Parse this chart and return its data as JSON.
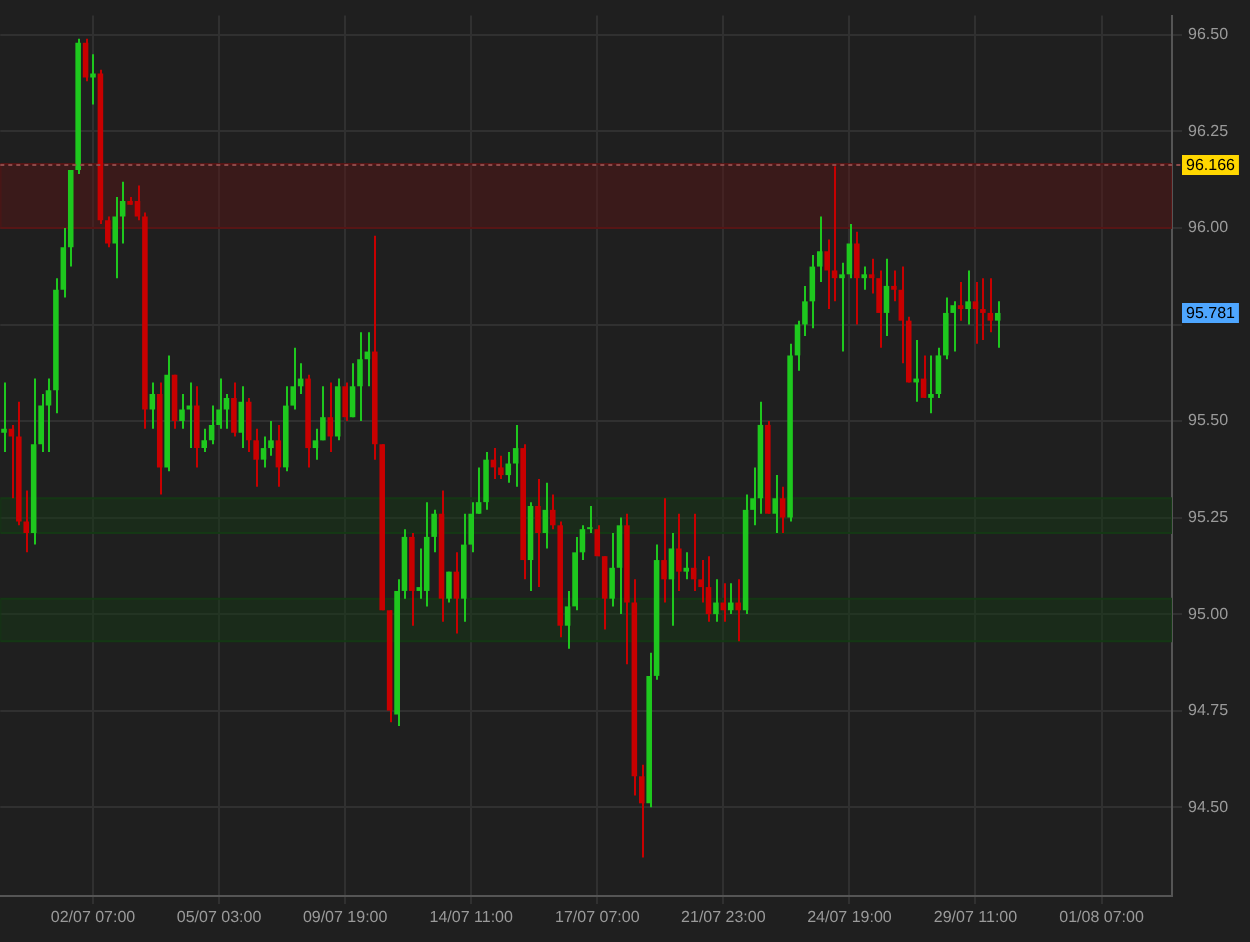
{
  "chart_data": {
    "type": "candlestick",
    "categories": [
      null,
      null,
      null,
      null,
      null,
      null,
      null,
      null,
      null,
      null,
      null,
      null,
      "02/07 07:00",
      null,
      null,
      null,
      null,
      null,
      null,
      null,
      null,
      null,
      null,
      null,
      null,
      null,
      null,
      null,
      null,
      "05/07 03:00",
      null,
      null,
      null,
      null,
      null,
      null,
      null,
      null,
      null,
      null,
      null,
      null,
      null,
      null,
      null,
      null,
      "09/07 19:00",
      null,
      null,
      null,
      null,
      null,
      null,
      null,
      null,
      null,
      null,
      null,
      null,
      null,
      null,
      null,
      null,
      "14/07 11:00",
      null,
      null,
      null,
      null,
      null,
      null,
      null,
      null,
      null,
      null,
      null,
      null,
      null,
      null,
      null,
      null,
      "17/07 07:00",
      null,
      null,
      null,
      null,
      null,
      null,
      null,
      null,
      null,
      null,
      null,
      null,
      null,
      null,
      null,
      null,
      "21/07 23:00",
      null,
      null,
      null,
      null,
      null,
      null,
      null,
      null,
      null,
      null,
      null,
      null,
      null,
      null,
      null,
      null,
      "24/07 19:00",
      null,
      null,
      null,
      null,
      null,
      null,
      null,
      null,
      null,
      null,
      null,
      null,
      null,
      null,
      null,
      null,
      "29/07 11:00",
      null,
      null,
      null,
      null,
      null,
      null,
      null,
      null,
      null,
      null,
      null,
      null,
      null,
      null,
      null,
      null,
      "01/08 07:00",
      null,
      null,
      null,
      null,
      null,
      null,
      null,
      null,
      null
    ],
    "ohlc": [
      [
        95.47,
        95.6,
        95.42,
        95.48
      ],
      [
        95.48,
        95.49,
        95.3,
        95.46
      ],
      [
        95.46,
        95.55,
        95.23,
        95.24
      ],
      [
        95.24,
        95.32,
        95.16,
        95.21
      ],
      [
        95.21,
        95.61,
        95.18,
        95.44
      ],
      [
        95.44,
        95.57,
        95.42,
        95.54
      ],
      [
        95.54,
        95.61,
        95.42,
        95.58
      ],
      [
        95.58,
        95.87,
        95.52,
        95.84
      ],
      [
        95.84,
        96.0,
        95.82,
        95.95
      ],
      [
        95.95,
        96.15,
        95.9,
        96.15
      ],
      [
        96.15,
        96.49,
        96.14,
        96.48
      ],
      [
        96.48,
        96.49,
        96.38,
        96.39
      ],
      [
        96.39,
        96.45,
        96.32,
        96.4
      ],
      [
        96.4,
        96.41,
        96.01,
        96.02
      ],
      [
        96.02,
        96.03,
        95.95,
        95.96
      ],
      [
        95.96,
        96.08,
        95.87,
        96.03
      ],
      [
        96.03,
        96.12,
        95.96,
        96.07
      ],
      [
        96.07,
        96.08,
        96.06,
        96.06
      ],
      [
        96.07,
        96.11,
        96.02,
        96.03
      ],
      [
        96.03,
        96.04,
        95.48,
        95.53
      ],
      [
        95.53,
        95.6,
        95.48,
        95.57
      ],
      [
        95.57,
        95.6,
        95.31,
        95.38
      ],
      [
        95.38,
        95.67,
        95.37,
        95.62
      ],
      [
        95.62,
        95.62,
        95.48,
        95.5
      ],
      [
        95.5,
        95.57,
        95.48,
        95.53
      ],
      [
        95.53,
        95.6,
        95.43,
        95.54
      ],
      [
        95.54,
        95.59,
        95.38,
        95.43
      ],
      [
        95.43,
        95.48,
        95.42,
        95.45
      ],
      [
        95.45,
        95.54,
        95.44,
        95.49
      ],
      [
        95.49,
        95.61,
        95.48,
        95.53
      ],
      [
        95.53,
        95.57,
        95.48,
        95.56
      ],
      [
        95.56,
        95.6,
        95.46,
        95.47
      ],
      [
        95.47,
        95.59,
        95.43,
        95.55
      ],
      [
        95.55,
        95.56,
        95.42,
        95.45
      ],
      [
        95.45,
        95.48,
        95.33,
        95.4
      ],
      [
        95.4,
        95.46,
        95.38,
        95.43
      ],
      [
        95.43,
        95.5,
        95.41,
        95.45
      ],
      [
        95.45,
        95.49,
        95.33,
        95.38
      ],
      [
        95.38,
        95.59,
        95.37,
        95.54
      ],
      [
        95.54,
        95.69,
        95.53,
        95.59
      ],
      [
        95.59,
        95.65,
        95.57,
        95.61
      ],
      [
        95.61,
        95.62,
        95.38,
        95.43
      ],
      [
        95.43,
        95.48,
        95.4,
        95.45
      ],
      [
        95.45,
        95.59,
        95.45,
        95.51
      ],
      [
        95.51,
        95.6,
        95.42,
        95.46
      ],
      [
        95.46,
        95.61,
        95.45,
        95.59
      ],
      [
        95.59,
        95.6,
        95.5,
        95.51
      ],
      [
        95.51,
        95.65,
        95.51,
        95.59
      ],
      [
        95.59,
        95.73,
        95.5,
        95.66
      ],
      [
        95.66,
        95.73,
        95.59,
        95.68
      ],
      [
        95.68,
        95.98,
        95.4,
        95.44
      ],
      [
        95.44,
        95.44,
        95.01,
        95.01
      ],
      [
        95.01,
        95.01,
        94.72,
        94.75
      ],
      [
        94.74,
        95.09,
        94.71,
        95.06
      ],
      [
        95.06,
        95.22,
        95.04,
        95.2
      ],
      [
        95.2,
        95.21,
        94.97,
        95.06
      ],
      [
        95.06,
        95.17,
        95.04,
        95.07
      ],
      [
        95.06,
        95.29,
        95.02,
        95.2
      ],
      [
        95.2,
        95.27,
        95.16,
        95.26
      ],
      [
        95.26,
        95.32,
        94.98,
        95.04
      ],
      [
        95.04,
        95.11,
        95.03,
        95.11
      ],
      [
        95.11,
        95.16,
        94.95,
        95.04
      ],
      [
        95.04,
        95.26,
        94.98,
        95.18
      ],
      [
        95.18,
        95.29,
        95.16,
        95.26
      ],
      [
        95.26,
        95.38,
        95.26,
        95.29
      ],
      [
        95.29,
        95.42,
        95.27,
        95.4
      ],
      [
        95.4,
        95.43,
        95.35,
        95.38
      ],
      [
        95.38,
        95.41,
        95.35,
        95.36
      ],
      [
        95.36,
        95.42,
        95.34,
        95.39
      ],
      [
        95.39,
        95.49,
        95.33,
        95.43
      ],
      [
        95.43,
        95.44,
        95.09,
        95.14
      ],
      [
        95.14,
        95.29,
        95.06,
        95.28
      ],
      [
        95.28,
        95.35,
        95.07,
        95.21
      ],
      [
        95.21,
        95.34,
        95.17,
        95.27
      ],
      [
        95.27,
        95.31,
        95.22,
        95.23
      ],
      [
        95.23,
        95.24,
        94.94,
        94.97
      ],
      [
        94.97,
        95.06,
        94.91,
        95.02
      ],
      [
        95.02,
        95.2,
        95.01,
        95.16
      ],
      [
        95.16,
        95.23,
        95.14,
        95.22
      ],
      [
        95.22,
        95.28,
        95.21,
        95.22
      ],
      [
        95.22,
        95.23,
        95.15,
        95.15
      ],
      [
        95.15,
        95.15,
        94.96,
        95.04
      ],
      [
        95.04,
        95.21,
        95.02,
        95.12
      ],
      [
        95.12,
        95.25,
        95.0,
        95.23
      ],
      [
        95.23,
        95.26,
        94.87,
        95.03
      ],
      [
        95.03,
        95.09,
        94.53,
        94.58
      ],
      [
        94.58,
        94.61,
        94.37,
        94.51
      ],
      [
        94.51,
        94.9,
        94.5,
        94.84
      ],
      [
        94.84,
        95.18,
        94.83,
        95.14
      ],
      [
        95.14,
        95.3,
        95.03,
        95.09
      ],
      [
        95.09,
        95.21,
        94.97,
        95.17
      ],
      [
        95.17,
        95.26,
        95.06,
        95.11
      ],
      [
        95.11,
        95.16,
        95.09,
        95.12
      ],
      [
        95.12,
        95.26,
        95.06,
        95.09
      ],
      [
        95.09,
        95.14,
        95.03,
        95.07
      ],
      [
        95.07,
        95.15,
        94.98,
        95.0
      ],
      [
        95.0,
        95.09,
        94.98,
        95.03
      ],
      [
        95.03,
        95.08,
        94.98,
        95.01
      ],
      [
        95.01,
        95.08,
        95.0,
        95.03
      ],
      [
        95.03,
        95.09,
        94.93,
        95.01
      ],
      [
        95.01,
        95.31,
        95.0,
        95.27
      ],
      [
        95.27,
        95.38,
        95.23,
        95.3
      ],
      [
        95.3,
        95.55,
        95.26,
        95.49
      ],
      [
        95.49,
        95.5,
        95.26,
        95.26
      ],
      [
        95.26,
        95.36,
        95.21,
        95.3
      ],
      [
        95.3,
        95.33,
        95.21,
        95.25
      ],
      [
        95.25,
        95.7,
        95.24,
        95.67
      ],
      [
        95.67,
        95.76,
        95.63,
        95.75
      ],
      [
        95.75,
        95.85,
        95.72,
        95.81
      ],
      [
        95.81,
        95.93,
        95.74,
        95.9
      ],
      [
        95.9,
        96.03,
        95.86,
        95.94
      ],
      [
        95.94,
        95.97,
        95.79,
        95.89
      ],
      [
        95.89,
        96.16,
        95.81,
        95.87
      ],
      [
        95.87,
        95.91,
        95.68,
        95.88
      ],
      [
        95.88,
        96.01,
        95.87,
        95.96
      ],
      [
        95.96,
        95.99,
        95.75,
        95.87
      ],
      [
        95.87,
        95.9,
        95.84,
        95.88
      ],
      [
        95.88,
        95.92,
        95.83,
        95.87
      ],
      [
        95.87,
        95.89,
        95.69,
        95.78
      ],
      [
        95.78,
        95.92,
        95.72,
        95.85
      ],
      [
        95.85,
        95.89,
        95.81,
        95.84
      ],
      [
        95.84,
        95.9,
        95.65,
        95.76
      ],
      [
        95.76,
        95.77,
        95.6,
        95.6
      ],
      [
        95.6,
        95.71,
        95.55,
        95.61
      ],
      [
        95.61,
        95.67,
        95.56,
        95.56
      ],
      [
        95.56,
        95.67,
        95.52,
        95.57
      ],
      [
        95.57,
        95.69,
        95.56,
        95.67
      ],
      [
        95.67,
        95.82,
        95.66,
        95.78
      ],
      [
        95.78,
        95.81,
        95.68,
        95.8
      ],
      [
        95.8,
        95.86,
        95.76,
        95.79
      ],
      [
        95.79,
        95.89,
        95.75,
        95.81
      ],
      [
        95.81,
        95.86,
        95.7,
        95.79
      ],
      [
        95.79,
        95.87,
        95.71,
        95.78
      ],
      [
        95.78,
        95.87,
        95.73,
        95.76
      ],
      [
        95.76,
        95.81,
        95.69,
        95.78
      ],
      null,
      null,
      null,
      null,
      null,
      null,
      null,
      null,
      null,
      null,
      null,
      null,
      null,
      null,
      null,
      null,
      null,
      null,
      null,
      null,
      null,
      null,
      null
    ],
    "colors": [
      "#1ec81e",
      "#c80000",
      "#c80000",
      "#c80000",
      "#1ec81e",
      "#1ec81e",
      "#1ec81e",
      "#1ec81e",
      "#1ec81e",
      "#1ec81e",
      "#1ec81e",
      "#c80000",
      "#1ec81e",
      "#c80000",
      "#c80000",
      "#1ec81e",
      "#1ec81e",
      "#c80000",
      "#c80000",
      "#c80000",
      "#1ec81e",
      "#c80000",
      "#1ec81e",
      "#c80000",
      "#1ec81e",
      "#1ec81e",
      "#c80000",
      "#1ec81e",
      "#1ec81e",
      "#1ec81e",
      "#1ec81e",
      "#c80000",
      "#1ec81e",
      "#c80000",
      "#c80000",
      "#1ec81e",
      "#1ec81e",
      "#c80000",
      "#1ec81e",
      "#1ec81e",
      "#1ec81e",
      "#c80000",
      "#1ec81e",
      "#1ec81e",
      "#c80000",
      "#1ec81e",
      "#c80000",
      "#1ec81e",
      "#1ec81e",
      "#1ec81e",
      "#c80000",
      "#c80000",
      "#c80000",
      "#1ec81e",
      "#1ec81e",
      "#c80000",
      "#1ec81e",
      "#1ec81e",
      "#1ec81e",
      "#c80000",
      "#1ec81e",
      "#c80000",
      "#1ec81e",
      "#1ec81e",
      "#1ec81e",
      "#1ec81e",
      "#c80000",
      "#c80000",
      "#1ec81e",
      "#1ec81e",
      "#c80000",
      "#1ec81e",
      "#c80000",
      "#1ec81e",
      "#c80000",
      "#c80000",
      "#1ec81e",
      "#1ec81e",
      "#1ec81e",
      "#1ec81e",
      "#c80000",
      "#c80000",
      "#1ec81e",
      "#1ec81e",
      "#c80000",
      "#c80000",
      "#c80000",
      "#1ec81e",
      "#1ec81e",
      "#c80000",
      "#1ec81e",
      "#c80000",
      "#1ec81e",
      "#c80000",
      "#c80000",
      "#c80000",
      "#1ec81e",
      "#c80000",
      "#1ec81e",
      "#c80000",
      "#1ec81e",
      "#1ec81e",
      "#1ec81e",
      "#c80000",
      "#1ec81e",
      "#c80000",
      "#1ec81e",
      "#1ec81e",
      "#1ec81e",
      "#1ec81e",
      "#1ec81e",
      "#c80000",
      "#c80000",
      "#1ec81e",
      "#1ec81e",
      "#c80000",
      "#1ec81e",
      "#c80000",
      "#c80000",
      "#1ec81e",
      "#c80000",
      "#c80000",
      "#c80000",
      "#1ec81e",
      "#c80000",
      "#1ec81e",
      "#1ec81e",
      "#1ec81e",
      "#1ec81e",
      "#c80000",
      "#1ec81e",
      "#c80000",
      "#c80000",
      "#c80000",
      "#1ec81e",
      null,
      null,
      null,
      null,
      null,
      null,
      null,
      null,
      null,
      null,
      null,
      null,
      null,
      null,
      null,
      null,
      null,
      null,
      null,
      null,
      null,
      null,
      null
    ],
    "ylim": [
      94.27,
      96.55
    ],
    "yticks": [
      {
        "value": 94.5,
        "label": "94.50"
      },
      {
        "value": 94.75,
        "label": "94.75"
      },
      {
        "value": 95,
        "label": "95.00"
      },
      {
        "value": 95.25,
        "label": "95.25"
      },
      {
        "value": 95.5,
        "label": "95.50"
      },
      {
        "value": 95.75,
        "label": null
      },
      {
        "value": 96,
        "label": "96.00"
      },
      {
        "value": 96.25,
        "label": "96.25"
      },
      {
        "value": 96.5,
        "label": "96.50"
      }
    ],
    "grid": true,
    "bands": [
      {
        "axis": "y",
        "from": 96.0,
        "to": 96.166,
        "color": "#5a1414"
      },
      {
        "axis": "y",
        "from": 95.21,
        "to": 95.3,
        "color": "#143a14"
      },
      {
        "axis": "y",
        "from": 94.93,
        "to": 95.04,
        "color": "#143a14"
      }
    ],
    "ref_lines": [
      {
        "axis": "y",
        "value": 96.166,
        "label": "96.166",
        "color": "#8c4a4a",
        "line_style": "dotted"
      }
    ],
    "annotations": [
      "95.781"
    ]
  }
}
